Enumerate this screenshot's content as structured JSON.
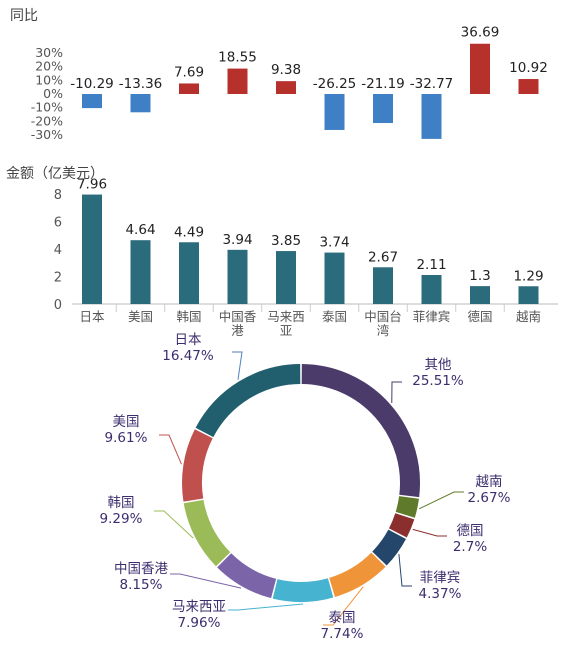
{
  "chart_data": [
    {
      "type": "bar",
      "title": "同比",
      "categories": [
        "日本",
        "美国",
        "韩国",
        "中国香港",
        "马来西亚",
        "泰国",
        "中国台湾",
        "菲律宾",
        "德国",
        "越南"
      ],
      "values": [
        -10.29,
        -13.36,
        7.69,
        18.55,
        9.38,
        -26.25,
        -21.19,
        -32.77,
        36.69,
        10.92
      ],
      "data_labels": [
        "-10.29",
        "-13.36",
        "7.69",
        "18.55",
        "9.38",
        "-26.25",
        "-21.19",
        "-32.77",
        "36.69",
        "10.92"
      ],
      "yticks": [
        "30%",
        "20%",
        "10%",
        "0%",
        "-10%",
        "-20%",
        "-30%"
      ],
      "ytick_values": [
        30,
        20,
        10,
        0,
        -10,
        -20,
        -30
      ],
      "ylim": [
        -35,
        40
      ],
      "colors": {
        "positive": "#b7312c",
        "negative": "#3f7fc6"
      }
    },
    {
      "type": "bar",
      "ylabel": "金额（亿美元）",
      "categories": [
        "日本",
        "美国",
        "韩国",
        "中国香港",
        "马来西亚",
        "泰国",
        "中国台湾",
        "菲律宾",
        "德国",
        "越南"
      ],
      "category_labels": [
        [
          "日本"
        ],
        [
          "美国"
        ],
        [
          "韩国"
        ],
        [
          "中国香",
          "港"
        ],
        [
          "马来西",
          "亚"
        ],
        [
          "泰国"
        ],
        [
          "中国台",
          "湾"
        ],
        [
          "菲律宾"
        ],
        [
          "德国"
        ],
        [
          "越南"
        ]
      ],
      "values": [
        7.96,
        4.64,
        4.49,
        3.94,
        3.85,
        3.74,
        2.67,
        2.11,
        1.3,
        1.29
      ],
      "data_labels": [
        "7.96",
        "4.64",
        "4.49",
        "3.94",
        "3.85",
        "3.74",
        "2.67",
        "2.11",
        "1.3",
        "1.29"
      ],
      "yticks": [
        "8",
        "6",
        "4",
        "2",
        "0"
      ],
      "ytick_values": [
        8,
        6,
        4,
        2,
        0
      ],
      "ylim": [
        0,
        8.2
      ],
      "colors": {
        "bar": "#2a6b7c"
      }
    },
    {
      "type": "pie",
      "style": "donut",
      "slices": [
        {
          "name": "其他",
          "value": 25.51,
          "label": "25.51%",
          "color": "#4a3b6b"
        },
        {
          "name": "越南",
          "value": 2.67,
          "label": "2.67%",
          "color": "#5f7a2b"
        },
        {
          "name": "德国",
          "value": 2.7,
          "label": "2.7%",
          "color": "#8b2e2e"
        },
        {
          "name": "菲律宾",
          "value": 4.37,
          "label": "4.37%",
          "color": "#24466a"
        },
        {
          "name": "泰国",
          "value": 7.74,
          "label": "7.74%",
          "color": "#f0943a"
        },
        {
          "name": "马来西亚",
          "value": 7.96,
          "label": "7.96%",
          "color": "#46b3d1"
        },
        {
          "name": "中国香港",
          "value": 8.15,
          "label": "8.15%",
          "color": "#7b64a8"
        },
        {
          "name": "韩国",
          "value": 9.29,
          "label": "9.29%",
          "color": "#9bbb59"
        },
        {
          "name": "美国",
          "value": 9.61,
          "label": "9.61%",
          "color": "#c0504d"
        },
        {
          "name": "日本",
          "value": 16.47,
          "label": "16.47%",
          "color": "#4f81bd"
        }
      ],
      "ring_color_override": {
        "日本": "#215f6e"
      }
    }
  ]
}
